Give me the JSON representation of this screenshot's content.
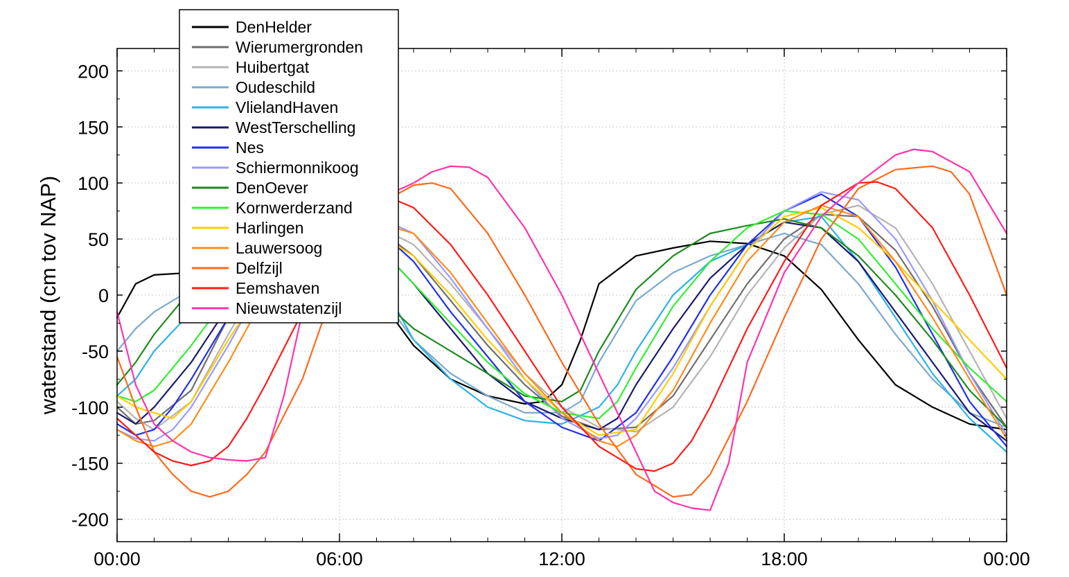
{
  "chart_data": {
    "type": "line",
    "title": "",
    "xlabel": "",
    "ylabel": "waterstand (cm tov NAP)",
    "x_tick_labels": [
      "00:00",
      "06:00",
      "12:00",
      "18:00",
      "00:00"
    ],
    "x_ticks_hours": [
      0,
      6,
      12,
      18,
      24
    ],
    "xlim_hours": [
      0,
      24
    ],
    "ylim": [
      -220,
      220
    ],
    "y_ticks": [
      -200,
      -150,
      -100,
      -50,
      0,
      50,
      100,
      150,
      200
    ],
    "y_tick_labels": [
      "-200",
      "-150",
      "-100",
      "-50",
      "0",
      "50",
      "100",
      "150",
      "200"
    ],
    "grid": true,
    "legend_position": "top-left",
    "series": [
      {
        "name": "DenHelder",
        "color": "#000000",
        "x": [
          0,
          0.5,
          1,
          2,
          3,
          4,
          5,
          6,
          7,
          8,
          9,
          10,
          11,
          11.5,
          12,
          12.5,
          13,
          14,
          15,
          16,
          17,
          18,
          19,
          20,
          21,
          22,
          23,
          24
        ],
        "y": [
          -20,
          10,
          18,
          20,
          25,
          35,
          40,
          35,
          0,
          -45,
          -75,
          -90,
          -97,
          -95,
          -80,
          -40,
          10,
          35,
          42,
          48,
          46,
          35,
          5,
          -40,
          -80,
          -100,
          -115,
          -120
        ]
      },
      {
        "name": "Wierumergronden",
        "color": "#6e6e6e",
        "x": [
          0,
          0.5,
          1,
          2,
          3,
          4,
          5,
          6,
          7,
          8,
          9,
          10,
          11,
          12,
          13,
          14,
          15,
          16,
          17,
          18,
          19,
          20,
          21,
          22,
          23,
          24
        ],
        "y": [
          -100,
          -115,
          -112,
          -85,
          -20,
          30,
          55,
          65,
          60,
          35,
          -5,
          -45,
          -80,
          -108,
          -120,
          -118,
          -90,
          -40,
          10,
          50,
          72,
          70,
          40,
          -10,
          -70,
          -118
        ]
      },
      {
        "name": "Huibertgat",
        "color": "#b4b4b4",
        "x": [
          0,
          0.5,
          1,
          2,
          3,
          4,
          5,
          6,
          7,
          8,
          9,
          10,
          11,
          12,
          13,
          14,
          15,
          16,
          17,
          18,
          19,
          20,
          21,
          22,
          23,
          24
        ],
        "y": [
          -95,
          -110,
          -120,
          -95,
          -35,
          20,
          50,
          62,
          62,
          45,
          10,
          -30,
          -70,
          -100,
          -118,
          -122,
          -100,
          -55,
          0,
          42,
          72,
          80,
          60,
          10,
          -50,
          -110
        ]
      },
      {
        "name": "Oudeschild",
        "color": "#7aa9cc",
        "x": [
          0,
          0.5,
          1,
          1.5,
          2,
          3,
          4,
          5,
          6,
          7,
          8,
          9,
          10,
          11,
          12,
          12.5,
          13,
          14,
          15,
          16,
          17,
          18,
          19,
          20,
          21,
          22,
          23,
          24
        ],
        "y": [
          -50,
          -30,
          -15,
          -5,
          5,
          20,
          30,
          40,
          35,
          5,
          -40,
          -70,
          -90,
          -105,
          -105,
          -95,
          -60,
          -5,
          20,
          35,
          45,
          55,
          45,
          10,
          -35,
          -75,
          -105,
          -118
        ]
      },
      {
        "name": "VlielandHaven",
        "color": "#2bb3e8",
        "x": [
          0,
          0.5,
          1,
          2,
          3,
          4,
          5,
          6,
          7,
          7.5,
          8,
          9,
          10,
          11,
          12,
          13,
          13.5,
          14,
          15,
          16,
          17,
          18,
          19,
          20,
          21,
          22,
          23,
          24
        ],
        "y": [
          -90,
          -75,
          -50,
          -15,
          10,
          25,
          35,
          35,
          10,
          -10,
          -40,
          -75,
          -100,
          -112,
          -115,
          -100,
          -80,
          -50,
          0,
          30,
          45,
          65,
          70,
          30,
          -20,
          -70,
          -110,
          -140
        ]
      },
      {
        "name": "WestTerschelling",
        "color": "#191970",
        "x": [
          0,
          0.5,
          1,
          2,
          3,
          4,
          5,
          6,
          7,
          8,
          9,
          10,
          11,
          12,
          13,
          13.5,
          14,
          15,
          16,
          17,
          18,
          19,
          20,
          21,
          22,
          23,
          24
        ],
        "y": [
          -105,
          -115,
          -100,
          -60,
          -10,
          25,
          45,
          55,
          45,
          10,
          -30,
          -70,
          -95,
          -110,
          -120,
          -110,
          -80,
          -30,
          15,
          45,
          65,
          60,
          30,
          -15,
          -60,
          -105,
          -130
        ]
      },
      {
        "name": "Nes",
        "color": "#1f2ef0",
        "x": [
          0,
          0.5,
          1,
          1.5,
          2,
          3,
          4,
          5,
          6,
          7,
          8,
          9,
          10,
          11,
          12,
          13,
          14,
          15,
          16,
          17,
          18,
          19,
          20,
          21,
          22,
          23,
          24
        ],
        "y": [
          -115,
          -125,
          -120,
          -100,
          -75,
          -20,
          25,
          55,
          68,
          60,
          30,
          -15,
          -55,
          -95,
          -118,
          -130,
          -105,
          -55,
          0,
          45,
          75,
          90,
          70,
          25,
          -35,
          -95,
          -135
        ]
      },
      {
        "name": "Schiermonnikoog",
        "color": "#9999ff",
        "x": [
          0,
          0.5,
          1,
          1.5,
          2,
          3,
          4,
          5,
          6,
          7,
          8,
          9,
          10,
          11,
          12,
          13,
          13.5,
          14,
          15,
          16,
          17,
          18,
          19,
          20,
          21,
          22,
          23,
          24
        ],
        "y": [
          -120,
          -128,
          -130,
          -120,
          -100,
          -45,
          15,
          50,
          65,
          70,
          55,
          15,
          -30,
          -75,
          -110,
          -128,
          -125,
          -110,
          -65,
          -10,
          40,
          75,
          92,
          85,
          50,
          -5,
          -70,
          -125
        ]
      },
      {
        "name": "DenOever",
        "color": "#1e8a1e",
        "x": [
          0,
          0.5,
          1,
          2,
          3,
          4,
          5,
          6,
          7,
          8,
          9,
          10,
          11,
          12,
          12.5,
          13,
          14,
          15,
          16,
          17,
          18,
          19,
          20,
          21,
          22,
          23,
          24
        ],
        "y": [
          -80,
          -60,
          -35,
          5,
          25,
          40,
          45,
          40,
          0,
          -30,
          -50,
          -70,
          -90,
          -95,
          -85,
          -50,
          5,
          35,
          55,
          62,
          68,
          60,
          35,
          0,
          -40,
          -85,
          -118
        ]
      },
      {
        "name": "Kornwerderzand",
        "color": "#33ee33",
        "x": [
          0,
          0.5,
          1,
          2,
          3,
          4,
          5,
          6,
          7,
          8,
          9,
          10,
          11,
          12,
          13,
          13.5,
          14,
          15,
          16,
          17,
          18,
          19,
          20,
          21,
          22,
          23,
          24
        ],
        "y": [
          -90,
          -95,
          -85,
          -45,
          0,
          30,
          50,
          55,
          45,
          10,
          -25,
          -60,
          -88,
          -105,
          -110,
          -95,
          -65,
          -10,
          30,
          60,
          75,
          72,
          50,
          10,
          -30,
          -65,
          -95
        ]
      },
      {
        "name": "Harlingen",
        "color": "#ffcc00",
        "x": [
          0,
          0.5,
          1,
          1.5,
          2,
          3,
          4,
          5,
          6,
          7,
          8,
          9,
          10,
          11,
          12,
          13,
          14,
          15,
          16,
          17,
          18,
          19,
          20,
          21,
          22,
          23,
          24
        ],
        "y": [
          -90,
          -100,
          -105,
          -110,
          -95,
          -40,
          10,
          45,
          60,
          55,
          35,
          0,
          -40,
          -75,
          -105,
          -125,
          -120,
          -70,
          -10,
          40,
          70,
          78,
          60,
          30,
          -5,
          -40,
          -75
        ]
      },
      {
        "name": "Lauwersoog",
        "color": "#ff8c1a",
        "x": [
          0,
          0.5,
          1,
          1.5,
          2,
          3,
          4,
          5,
          6,
          7,
          8,
          9,
          10,
          11,
          12,
          13,
          13.5,
          14,
          15,
          16,
          17,
          18,
          19,
          20,
          21,
          22,
          23,
          24
        ],
        "y": [
          -120,
          -130,
          -135,
          -130,
          -115,
          -60,
          0,
          40,
          60,
          65,
          55,
          20,
          -25,
          -70,
          -105,
          -130,
          -135,
          -125,
          -85,
          -25,
          30,
          65,
          80,
          70,
          30,
          -20,
          -75,
          -128
        ]
      },
      {
        "name": "Delfzijl",
        "color": "#ff6a1a",
        "x": [
          0,
          0.5,
          1,
          1.5,
          2,
          2.5,
          3,
          3.5,
          4,
          5,
          6,
          7,
          8,
          8.5,
          9,
          10,
          11,
          12,
          13,
          14,
          15,
          15.5,
          16,
          17,
          18,
          19,
          20,
          21,
          22,
          22.5,
          23,
          24
        ],
        "y": [
          -55,
          -100,
          -140,
          -160,
          -175,
          -180,
          -175,
          -160,
          -140,
          -75,
          20,
          80,
          98,
          100,
          95,
          55,
          0,
          -60,
          -115,
          -160,
          -180,
          -178,
          -160,
          -95,
          -20,
          50,
          95,
          112,
          115,
          110,
          90,
          0
        ]
      },
      {
        "name": "Eemshaven",
        "color": "#ff1a1a",
        "x": [
          0,
          0.5,
          1,
          1.5,
          2,
          2.5,
          3,
          3.5,
          4,
          5,
          6,
          7,
          7.5,
          8,
          9,
          10,
          11,
          12,
          13,
          14,
          14.5,
          15,
          15.5,
          16,
          17,
          18,
          19,
          20,
          20.5,
          21,
          22,
          23,
          24
        ],
        "y": [
          -110,
          -125,
          -140,
          -148,
          -152,
          -148,
          -135,
          -110,
          -80,
          -15,
          45,
          80,
          85,
          78,
          45,
          0,
          -50,
          -100,
          -135,
          -155,
          -157,
          -150,
          -130,
          -100,
          -30,
          30,
          80,
          100,
          101,
          95,
          60,
          0,
          -65
        ]
      },
      {
        "name": "Nieuwstatenzijl",
        "color": "#ff33aa",
        "x": [
          0,
          0.5,
          1,
          1.5,
          2,
          2.5,
          3,
          3.5,
          4,
          4.5,
          5,
          5.5,
          6,
          7,
          8,
          8.5,
          9,
          9.5,
          10,
          11,
          12,
          13,
          14,
          14.5,
          15,
          15.5,
          16,
          16.5,
          17,
          18,
          19,
          20,
          21,
          21.5,
          22,
          23,
          24
        ],
        "y": [
          -15,
          -80,
          -115,
          -130,
          -140,
          -145,
          -147,
          -148,
          -145,
          -90,
          -15,
          30,
          55,
          85,
          100,
          110,
          115,
          114,
          105,
          60,
          0,
          -70,
          -140,
          -175,
          -185,
          -190,
          -192,
          -150,
          -60,
          20,
          70,
          100,
          125,
          130,
          128,
          110,
          55
        ]
      }
    ]
  }
}
